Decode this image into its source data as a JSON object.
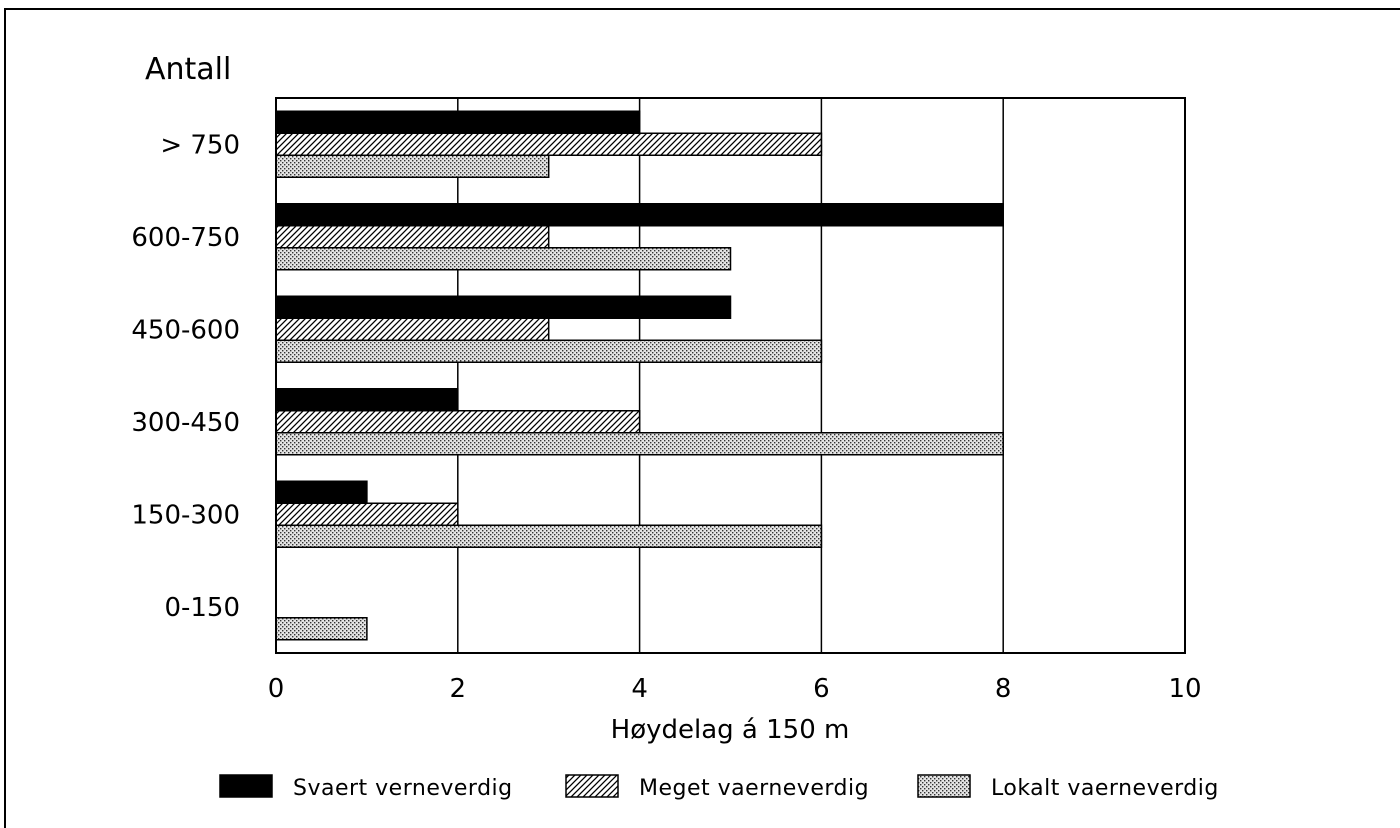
{
  "chart_data": {
    "type": "bar",
    "orientation": "horizontal",
    "categories": [
      "> 750",
      "600-750",
      "450-600",
      "300-450",
      "150-300",
      "0-150"
    ],
    "series": [
      {
        "name": "Svaert verneverdig",
        "values": [
          4,
          8,
          5,
          2,
          1,
          0
        ],
        "pattern": "solid-black"
      },
      {
        "name": "Meget vaerneverdig",
        "values": [
          6,
          3,
          3,
          4,
          2,
          0
        ],
        "pattern": "diagonal-hatch"
      },
      {
        "name": "Lokalt vaerneverdig",
        "values": [
          3,
          5,
          6,
          8,
          6,
          1
        ],
        "pattern": "dotted-gray"
      }
    ],
    "title": "",
    "ylabel": "Antall",
    "xlabel": "Høydelag á 150 m",
    "xlim": [
      0,
      10
    ],
    "xticks": [
      0,
      2,
      4,
      6,
      8,
      10
    ],
    "grid": "vertical",
    "legend_position": "bottom"
  }
}
